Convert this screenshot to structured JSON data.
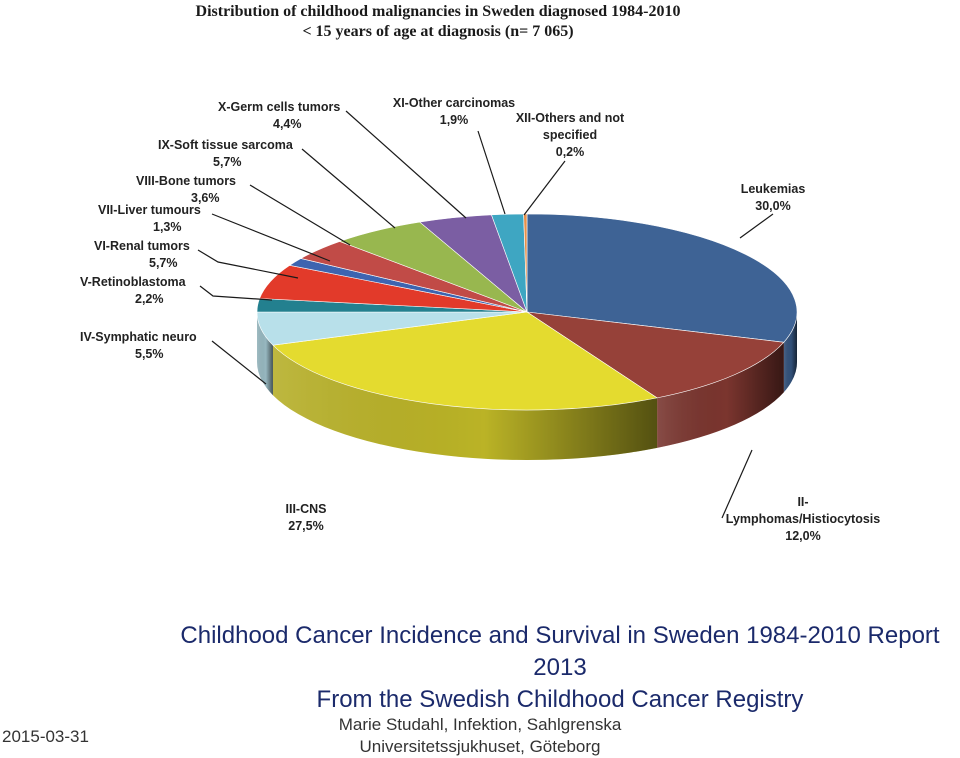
{
  "chart_data": {
    "type": "pie",
    "title_lines": [
      "Distribution of childhood malignancies in Sweden diagnosed 1984-2010",
      "< 15 years of age at diagnosis (n= 7 065)"
    ],
    "slices": [
      {
        "name": "Leukemias",
        "value": 30.0,
        "label": "Leukemias",
        "value_label": "30,0%",
        "color": "#3e6395"
      },
      {
        "name": "II-Lymphomas/Histiocytosis",
        "value": 12.0,
        "label": "II-\nLymphomas/Histiocytosis",
        "value_label": "12,0%",
        "color": "#964139"
      },
      {
        "name": "III-CNS",
        "value": 27.5,
        "label": "III-CNS",
        "value_label": "27,5%",
        "color": "#e4db2f"
      },
      {
        "name": "IV-Symphatic neuro",
        "value": 5.5,
        "label": "IV-Symphatic neuro",
        "value_label": "5,5%",
        "color": "#b8e0ea"
      },
      {
        "name": "V-Retinoblastoma",
        "value": 2.2,
        "label": "V-Retinoblastoma",
        "value_label": "2,2%",
        "color": "#23808f"
      },
      {
        "name": "VI-Renal tumors",
        "value": 5.7,
        "label": "VI-Renal tumors",
        "value_label": "5,7%",
        "color": "#e23a2a"
      },
      {
        "name": "VII-Liver tumours",
        "value": 1.3,
        "label": "VII-Liver tumours",
        "value_label": "1,3%",
        "color": "#3d64b0"
      },
      {
        "name": "VIII-Bone tumors",
        "value": 3.6,
        "label": "VIII-Bone tumors",
        "value_label": "3,6%",
        "color": "#c14b47"
      },
      {
        "name": "IX-Soft tissue sarcoma",
        "value": 5.7,
        "label": "IX-Soft tissue sarcoma",
        "value_label": "5,7%",
        "color": "#98b74f"
      },
      {
        "name": "X-Germ cells tumors",
        "value": 4.4,
        "label": "X-Germ cells tumors",
        "value_label": "4,4%",
        "color": "#7b5ea3"
      },
      {
        "name": "XI-Other carcinomas",
        "value": 1.9,
        "label": "XI-Other carcinomas",
        "value_label": "1,9%",
        "color": "#3ea6c2"
      },
      {
        "name": "XII-Others and not specified",
        "value": 0.2,
        "label": "XII-Others and not\nspecified",
        "value_label": "0,2%",
        "color": "#e8904a"
      }
    ]
  },
  "caption": {
    "line1": "Childhood Cancer Incidence and Survival in Sweden 1984-2010 Report",
    "line2": "2013",
    "line3": "From the Swedish Childhood Cancer Registry",
    "author_line1": "Marie Studahl, Infektion,  Sahlgrenska",
    "author_line2": "Universitetssjukhuset, Göteborg"
  },
  "date": "2015-03-31"
}
